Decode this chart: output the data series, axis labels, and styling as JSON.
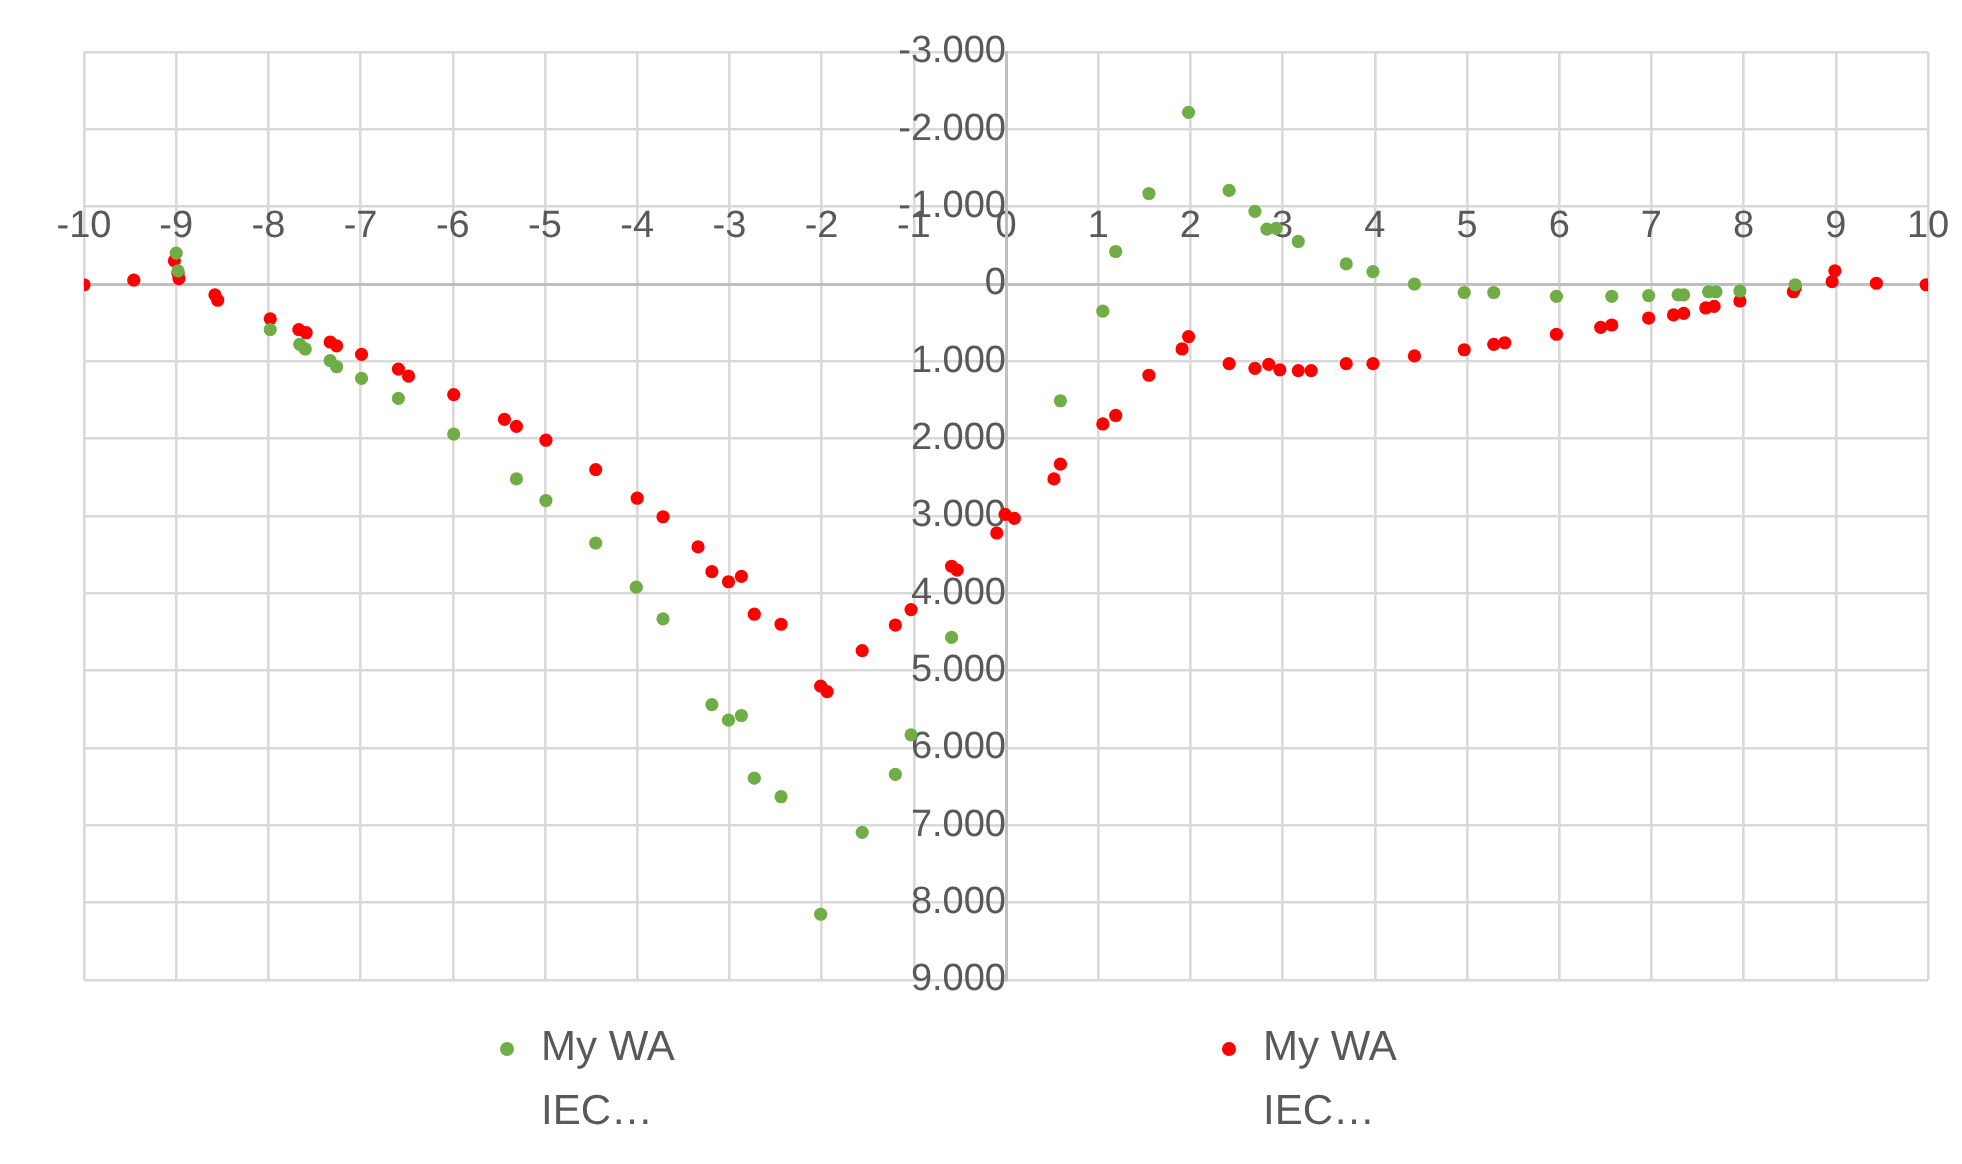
{
  "chart_data": {
    "type": "scatter",
    "legend": "bottom",
    "grid": true,
    "marker": "circle",
    "xlim": [
      -10,
      10
    ],
    "xticks": [
      -10,
      -9,
      -8,
      -7,
      -6,
      -5,
      -4,
      -3,
      -2,
      -1,
      0,
      1,
      2,
      3,
      4,
      5,
      6,
      7,
      8,
      9,
      10
    ],
    "ylim": [
      9000,
      -3000
    ],
    "yticks": [
      {
        "value": -3000,
        "label": "-3.000"
      },
      {
        "value": -2000,
        "label": "-2.000"
      },
      {
        "value": -1000,
        "label": "-1.000"
      },
      0,
      {
        "value": 1000,
        "label": "1.000"
      },
      {
        "value": 2000,
        "label": "2.000"
      },
      {
        "value": 3000,
        "label": "3.000"
      },
      {
        "value": 4000,
        "label": "4.000"
      },
      {
        "value": 5000,
        "label": "5.000"
      },
      {
        "value": 6000,
        "label": "6.000"
      },
      {
        "value": 7000,
        "label": "7.000"
      },
      {
        "value": 8000,
        "label": "8.000"
      },
      {
        "value": 9000,
        "label": "9.000"
      }
    ],
    "series": [
      {
        "name": "My WA IEC…",
        "color": "#70ad47",
        "x": [
          -9.0,
          -8.98,
          -7.98,
          -7.66,
          -7.6,
          -7.33,
          -7.26,
          -6.99,
          -6.59,
          -5.99,
          -5.31,
          -4.99,
          -4.45,
          -4.01,
          -3.72,
          -3.19,
          -3.01,
          -2.87,
          -2.73,
          -2.44,
          -2.01,
          -1.56,
          -1.2,
          -1.03,
          -0.59,
          0.59,
          1.05,
          1.19,
          1.55,
          1.98,
          2.42,
          2.7,
          2.83,
          2.93,
          3.17,
          3.69,
          3.98,
          4.43,
          4.97,
          5.29,
          5.97,
          6.57,
          6.97,
          7.29,
          7.35,
          7.62,
          7.7,
          7.96,
          8.56
        ],
        "values": [
          -400,
          -170,
          590,
          780,
          840,
          990,
          1070,
          1220,
          1480,
          1940,
          2520,
          2800,
          3350,
          3920,
          4330,
          5440,
          5640,
          5580,
          6390,
          6630,
          8150,
          7090,
          6340,
          5830,
          4570,
          1510,
          350,
          -420,
          -1170,
          -2220,
          -1210,
          -940,
          -710,
          -720,
          -550,
          -260,
          -160,
          0,
          110,
          110,
          160,
          160,
          150,
          140,
          140,
          100,
          100,
          90,
          10
        ]
      },
      {
        "name": "My WA IEC…",
        "color": "#ff0000",
        "x": [
          -10,
          -9.46,
          -9.02,
          -8.98,
          -8.97,
          -8.58,
          -8.55,
          -7.98,
          -7.67,
          -7.59,
          -7.33,
          -7.26,
          -6.99,
          -6.59,
          -6.48,
          -5.99,
          -5.44,
          -5.31,
          -4.99,
          -4.45,
          -4.0,
          -3.72,
          -3.34,
          -3.19,
          -3.01,
          -2.87,
          -2.73,
          -2.44,
          -2.01,
          -1.94,
          -1.56,
          -1.2,
          -1.03,
          -0.59,
          -0.53,
          -0.1,
          -0.01,
          0.09,
          0.52,
          0.59,
          1.05,
          1.19,
          1.55,
          1.91,
          1.98,
          2.42,
          2.7,
          2.85,
          2.97,
          3.17,
          3.31,
          3.69,
          3.98,
          4.43,
          4.97,
          5.29,
          5.41,
          5.97,
          6.45,
          6.57,
          6.97,
          7.24,
          7.35,
          7.59,
          7.68,
          7.96,
          8.54,
          8.56,
          8.96,
          8.99,
          9.44,
          9.98
        ],
        "values": [
          10,
          -50,
          -300,
          -140,
          -70,
          140,
          210,
          450,
          590,
          630,
          750,
          800,
          910,
          1100,
          1190,
          1430,
          1750,
          1840,
          2020,
          2400,
          2770,
          3010,
          3400,
          3720,
          3850,
          3780,
          4270,
          4400,
          5200,
          5270,
          4740,
          4410,
          4210,
          3650,
          3700,
          3220,
          2980,
          3030,
          2520,
          2330,
          1810,
          1700,
          1180,
          840,
          680,
          1030,
          1090,
          1040,
          1110,
          1120,
          1120,
          1030,
          1030,
          930,
          850,
          780,
          760,
          650,
          560,
          530,
          440,
          400,
          380,
          310,
          290,
          220,
          100,
          50,
          -30,
          -170,
          -10,
          10
        ]
      }
    ]
  }
}
